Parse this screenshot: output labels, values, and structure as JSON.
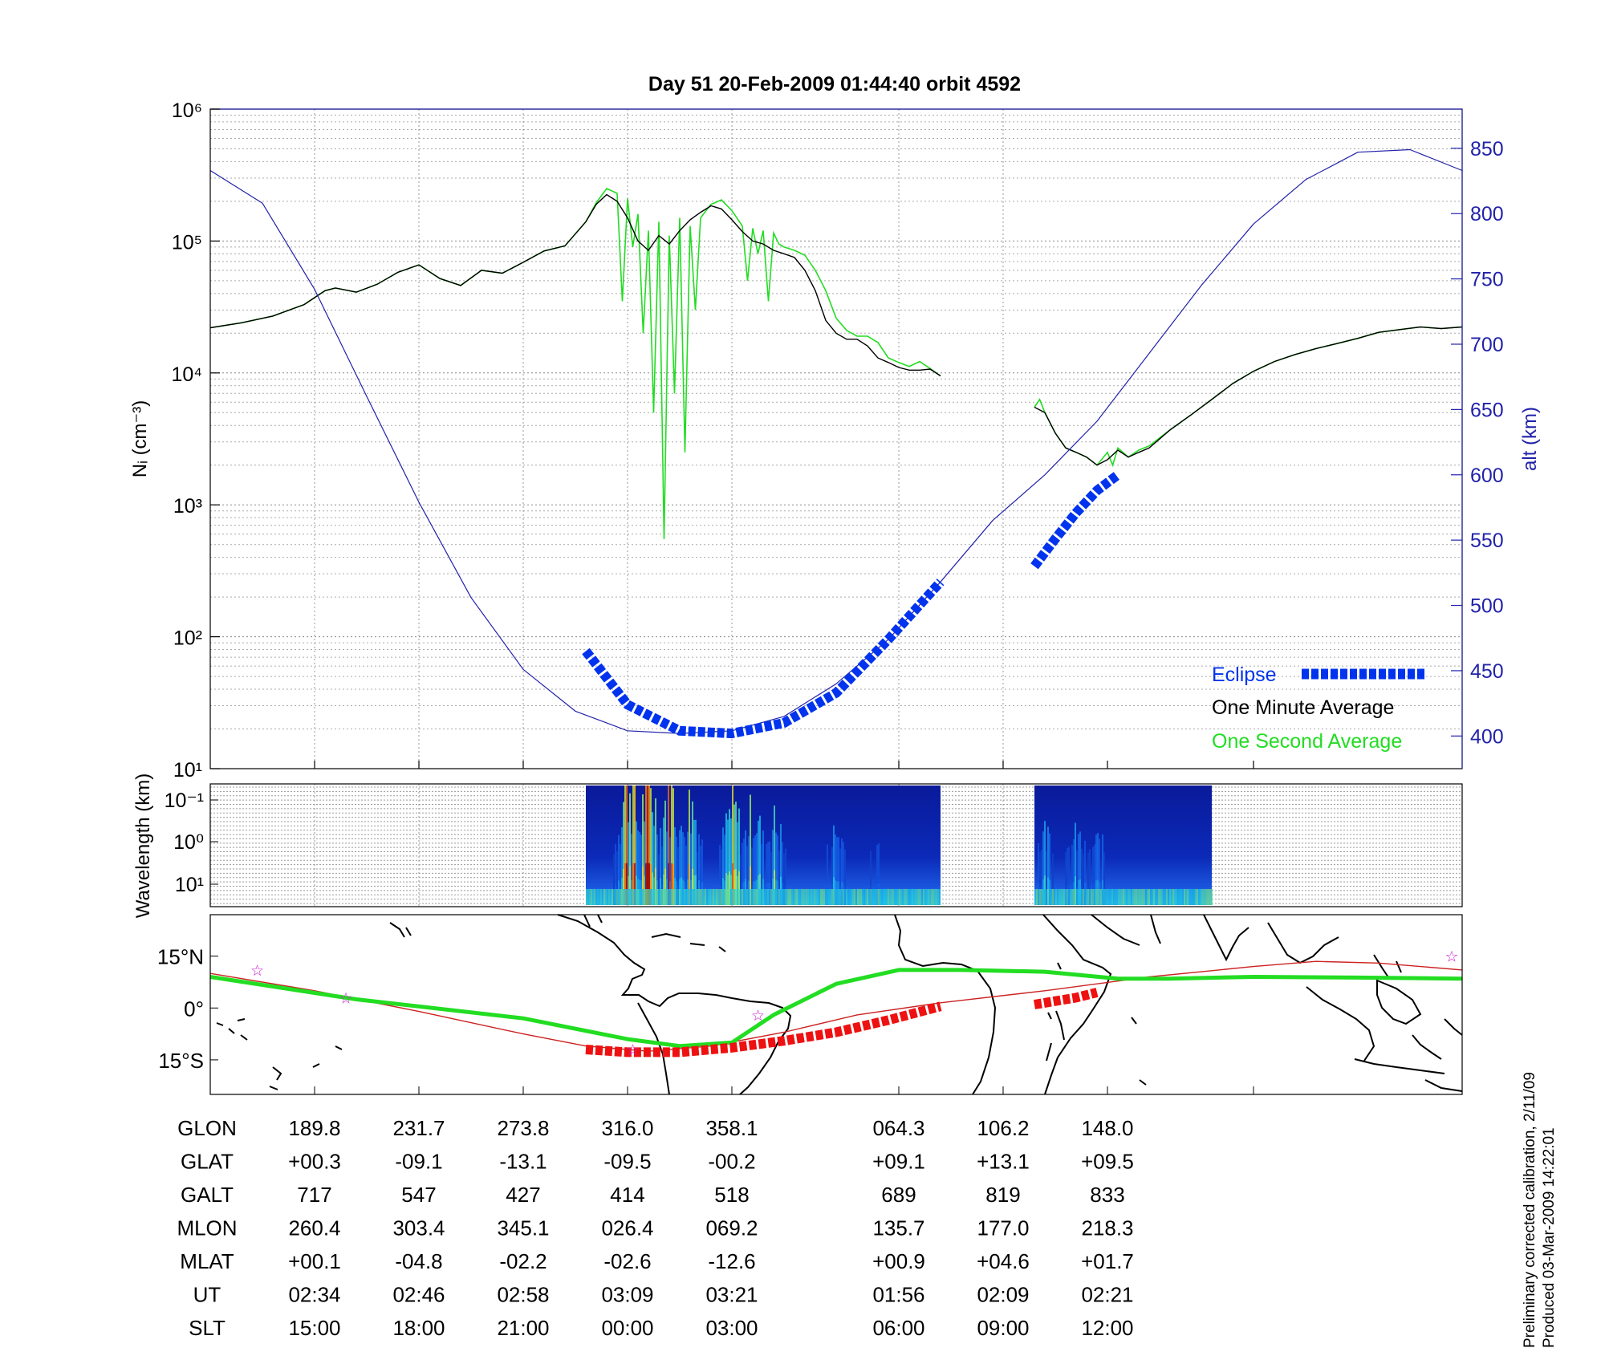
{
  "title": "Day 51  20-Feb-2009 01:44:40   orbit 4592",
  "colors": {
    "density": "#000000",
    "density_1s": "#22dd22",
    "altitude": "#2222aa",
    "eclipse": "#0033ee",
    "track": "#22dd22",
    "eclipse_track": "#ee1111",
    "mag_equator": "#cc2222",
    "star": "#cc22cc"
  },
  "chart_data": [
    {
      "type": "line",
      "ylabel": "Nᵢ (cm⁻³)",
      "ylabel_right": "alt (km)",
      "y_scale": "log",
      "ylim": [
        10,
        1000000
      ],
      "y_ticks": [
        "10¹",
        "10²",
        "10³",
        "10⁴",
        "10⁵",
        "10⁶"
      ],
      "y2lim": [
        375,
        880
      ],
      "y2_ticks": [
        400,
        450,
        500,
        550,
        600,
        650,
        700,
        750,
        800,
        850
      ],
      "xlim": [
        0,
        120
      ],
      "grid": true,
      "legend_position": "bottom-right",
      "legend": [
        {
          "label": "Eclipse",
          "color": "#0033ee",
          "style": "dashed-thick"
        },
        {
          "label": "One Minute Average",
          "color": "#000000",
          "style": "line"
        },
        {
          "label": "One Second Average",
          "color": "#22dd22",
          "style": "line"
        }
      ],
      "series": [
        {
          "name": "One Minute Average",
          "segments": [
            {
              "x": [
                0,
                3,
                6,
                9,
                11,
                12,
                14,
                16,
                18,
                20,
                22,
                24,
                26,
                28,
                30,
                32,
                34,
                36,
                37,
                38,
                39,
                40,
                41,
                42,
                43,
                44,
                45,
                46,
                47,
                48,
                49,
                50,
                51,
                52,
                53,
                54,
                55,
                56,
                57,
                58,
                59,
                60,
                61,
                62,
                63,
                64,
                65,
                66,
                67,
                68,
                69,
                70
              ],
              "y": [
                22000,
                24000,
                27000,
                33000,
                42000,
                44000,
                41000,
                47000,
                58000,
                66000,
                52000,
                46000,
                60000,
                57000,
                69000,
                84000,
                92000,
                140000,
                190000,
                225000,
                200000,
                150000,
                100000,
                85000,
                110000,
                95000,
                120000,
                145000,
                165000,
                185000,
                175000,
                145000,
                118000,
                100000,
                95000,
                85000,
                80000,
                75000,
                60000,
                42000,
                25000,
                20000,
                18000,
                18000,
                16000,
                13000,
                12000,
                11000,
                10500,
                10500,
                10700,
                9500
              ]
            },
            {
              "x": [
                79,
                80,
                81,
                82,
                83,
                84,
                85,
                86,
                87,
                88,
                89,
                90,
                92,
                94,
                96,
                98,
                100,
                102,
                104,
                106,
                108,
                110,
                112,
                114,
                116,
                118,
                120
              ],
              "y": [
                5500,
                5000,
                3500,
                2700,
                2500,
                2300,
                2000,
                2200,
                2600,
                2300,
                2500,
                2700,
                3700,
                4800,
                6300,
                8300,
                10300,
                12200,
                13800,
                15300,
                16700,
                18300,
                20300,
                21300,
                22300,
                21700,
                22300
              ]
            }
          ]
        },
        {
          "name": "One Second Average",
          "segments": [
            {
              "x": [
                0,
                3,
                6,
                9,
                11,
                12,
                14,
                16,
                18,
                20,
                22,
                24,
                26,
                28,
                30,
                32,
                34,
                36,
                37,
                38,
                39,
                39.5,
                40,
                40.5,
                41,
                41.5,
                42,
                42.5,
                43,
                43.5,
                44,
                44.5,
                45,
                45.5,
                46,
                46.5,
                47,
                48,
                49,
                50,
                51,
                51.5,
                52,
                52.5,
                53,
                53.5,
                54,
                54.5,
                55,
                56,
                57,
                58,
                59,
                60,
                61,
                62,
                63,
                64,
                65,
                66,
                67,
                68,
                69,
                70
              ],
              "y": [
                22000,
                24000,
                27000,
                33000,
                42000,
                44000,
                41000,
                47000,
                58000,
                66000,
                52000,
                46000,
                60000,
                57000,
                69000,
                84000,
                92000,
                140000,
                195000,
                250000,
                230000,
                35000,
                210000,
                90000,
                160000,
                20000,
                120000,
                5000,
                140000,
                550,
                110000,
                7000,
                150000,
                2500,
                130000,
                30000,
                150000,
                190000,
                205000,
                170000,
                130000,
                50000,
                125000,
                80000,
                120000,
                35000,
                115000,
                95000,
                90000,
                85000,
                78000,
                60000,
                42000,
                26000,
                21000,
                19000,
                19000,
                17000,
                13000,
                12000,
                11200,
                12200,
                10800,
                9500
              ]
            },
            {
              "x": [
                79,
                79.5,
                80,
                81,
                82,
                83,
                84,
                85,
                86,
                86.5,
                87,
                88,
                89,
                90,
                92,
                94,
                96,
                98,
                100,
                102,
                104,
                106,
                108,
                110,
                112,
                114,
                116,
                118,
                120
              ],
              "y": [
                5500,
                6300,
                5000,
                3500,
                2700,
                2500,
                2300,
                2000,
                2500,
                2000,
                2700,
                2300,
                2600,
                2800,
                3700,
                4800,
                6300,
                8300,
                10300,
                12200,
                13800,
                15300,
                16700,
                18300,
                20300,
                21300,
                22300,
                21700,
                22300
              ]
            }
          ]
        },
        {
          "name": "alt (km)",
          "axis": "right",
          "x": [
            0,
            5,
            10,
            15,
            20,
            25,
            30,
            35,
            40,
            45,
            50,
            55,
            60,
            65,
            70,
            75,
            80,
            85,
            90,
            95,
            100,
            105,
            110,
            115,
            120
          ],
          "y": [
            833,
            808,
            742,
            660,
            579,
            506,
            451,
            419,
            404,
            402,
            404,
            415,
            440,
            474,
            518,
            565,
            600,
            641,
            693,
            745,
            792,
            826,
            847,
            849,
            833
          ]
        }
      ],
      "eclipse_segments": [
        {
          "x": [
            36,
            40,
            45,
            50,
            55,
            60,
            65,
            70
          ],
          "y": [
            465,
            424,
            404,
            402,
            410,
            433,
            474,
            518
          ]
        },
        {
          "x": [
            79,
            81,
            83,
            85,
            87
          ],
          "y": [
            530,
            551,
            571,
            588,
            600
          ]
        }
      ]
    },
    {
      "type": "heatmap",
      "ylabel": "Wavelength (km)",
      "y_ticks": [
        "10⁻¹",
        "10⁰",
        "10¹"
      ],
      "xlim": [
        0,
        120
      ],
      "blocks": [
        {
          "x": [
            36,
            70
          ],
          "intensity_peaks": [
            [
              40,
              1.0
            ],
            [
              42,
              0.95
            ],
            [
              44,
              0.9
            ],
            [
              46,
              0.75
            ],
            [
              50,
              0.7
            ],
            [
              52,
              0.65
            ],
            [
              54,
              0.55
            ],
            [
              60,
              0.45
            ],
            [
              64,
              0.35
            ]
          ]
        },
        {
          "x": [
            79,
            96
          ],
          "intensity_peaks": [
            [
              80,
              0.45
            ],
            [
              83,
              0.4
            ],
            [
              85,
              0.35
            ]
          ]
        }
      ]
    },
    {
      "type": "map",
      "y_ticks": [
        "15°N",
        "0°",
        "15°S"
      ],
      "ylim": [
        -25,
        27
      ],
      "xlim": [
        0,
        120
      ],
      "track": {
        "x": [
          0,
          14,
          30,
          40,
          45,
          50,
          54,
          60,
          66,
          72,
          80,
          87,
          92,
          100,
          110,
          120
        ],
        "y": [
          9,
          2.5,
          -3,
          -9,
          -11,
          -10,
          -2,
          7,
          11,
          11,
          10.5,
          8.5,
          8.5,
          9,
          8.8,
          8.5
        ]
      },
      "eclipse_track": [
        {
          "x": [
            36,
            40,
            45,
            50,
            55,
            60,
            65,
            70
          ],
          "y": [
            -12,
            -12.8,
            -12.8,
            -11.5,
            -9.5,
            -7,
            -3.5,
            0.5
          ]
        },
        {
          "x": [
            79,
            81,
            83,
            85
          ],
          "y": [
            1,
            2,
            3,
            4.5
          ]
        }
      ],
      "magnetic_equator": {
        "x": [
          0,
          10,
          20,
          30,
          36,
          42,
          48,
          55,
          62,
          70,
          80,
          90,
          100,
          106,
          112,
          120
        ],
        "y": [
          10,
          5,
          -1,
          -7.5,
          -11,
          -12.5,
          -11,
          -7,
          -2,
          1.5,
          5,
          9,
          12,
          13.5,
          13,
          11
        ]
      },
      "stars": [
        {
          "x": 4.5,
          "y": 11
        },
        {
          "x": 13,
          "y": 3
        },
        {
          "x": 40.5,
          "y": -12
        },
        {
          "x": 52.5,
          "y": -2
        },
        {
          "x": 119,
          "y": 15
        }
      ]
    }
  ],
  "table": {
    "columns_x": [
      10,
      20,
      30,
      40,
      50,
      66,
      76,
      86
    ],
    "rows": [
      {
        "label": "GLON",
        "values": [
          "189.8",
          "231.7",
          "273.8",
          "316.0",
          "358.1",
          "064.3",
          "106.2",
          "148.0"
        ]
      },
      {
        "label": "GLAT",
        "values": [
          "+00.3",
          "-09.1",
          "-13.1",
          "-09.5",
          "-00.2",
          "+09.1",
          "+13.1",
          "+09.5"
        ]
      },
      {
        "label": "GALT",
        "values": [
          "717",
          "547",
          "427",
          "414",
          "518",
          "689",
          "819",
          "833"
        ]
      },
      {
        "label": "MLON",
        "values": [
          "260.4",
          "303.4",
          "345.1",
          "026.4",
          "069.2",
          "135.7",
          "177.0",
          "218.3"
        ]
      },
      {
        "label": "MLAT",
        "values": [
          "+00.1",
          "-04.8",
          "-02.2",
          "-02.6",
          "-12.6",
          "+00.9",
          "+04.6",
          "+01.7"
        ]
      },
      {
        "label": "UT",
        "values": [
          "02:34",
          "02:46",
          "02:58",
          "03:09",
          "03:21",
          "01:56",
          "02:09",
          "02:21"
        ]
      },
      {
        "label": "SLT",
        "values": [
          "15:00",
          "18:00",
          "21:00",
          "00:00",
          "03:00",
          "06:00",
          "09:00",
          "12:00"
        ]
      }
    ]
  },
  "footnote": {
    "line1": "Preliminary corrected calibration, 2/11/09",
    "line2": "Produced 03-Mar-2009 14:22:01"
  }
}
